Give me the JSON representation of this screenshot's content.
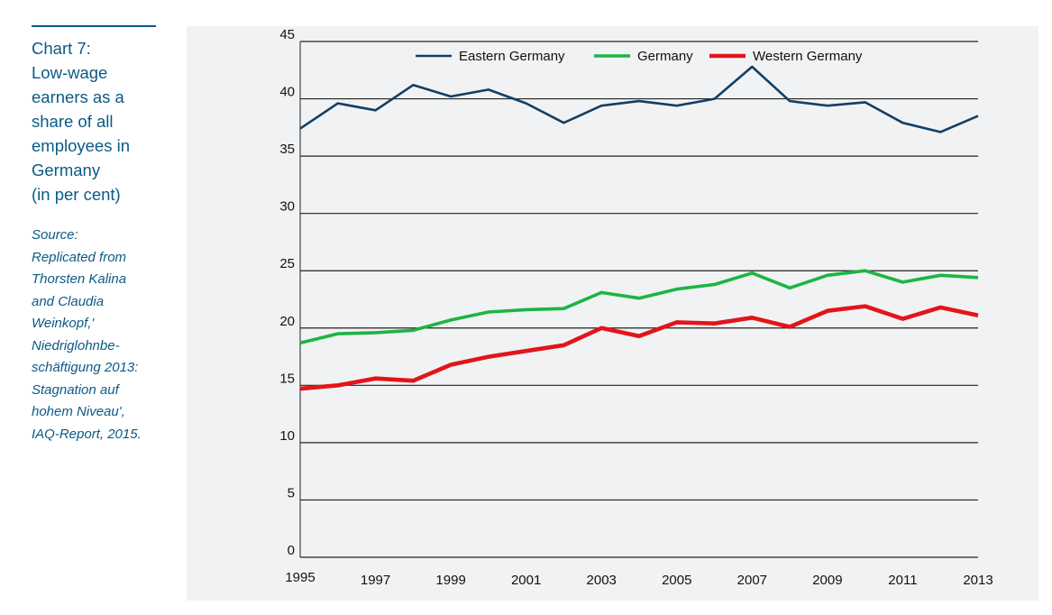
{
  "sidebar": {
    "title": "Chart 7:\nLow-wage\nearners as a\nshare of all\nemployees in\nGermany\n(in per cent)",
    "source": "Source:\nReplicated from\nThorsten Kalina\nand Claudia\nWeinkopf,'\nNiedriglohnbe-\nschäftigung 2013:\nStagnation auf\nhohem Niveau',\nIAQ-Report, 2015."
  },
  "chart_data": {
    "type": "line",
    "title": "Low-wage earners as a share of all employees in Germany (in per cent)",
    "xlabel": "",
    "ylabel": "",
    "x": [
      1995,
      1996,
      1997,
      1998,
      1999,
      2000,
      2001,
      2002,
      2003,
      2004,
      2005,
      2006,
      2007,
      2008,
      2009,
      2010,
      2011,
      2012,
      2013
    ],
    "x_tick_labels": [
      "1995",
      "1997",
      "1999",
      "2001",
      "2003",
      "2005",
      "2007",
      "2009",
      "2011",
      "2013"
    ],
    "y_tick_labels": [
      "0",
      "5",
      "10",
      "15",
      "20",
      "25",
      "30",
      "35",
      "40",
      "45"
    ],
    "ylim": [
      0,
      45
    ],
    "grid": true,
    "legend_position": "top",
    "series": [
      {
        "name": "Eastern Germany",
        "color": "#123f66",
        "values": [
          37.4,
          39.6,
          39.0,
          41.2,
          40.2,
          40.8,
          39.6,
          37.9,
          39.4,
          39.8,
          39.4,
          40.0,
          42.8,
          39.8,
          39.4,
          39.7,
          37.9,
          37.1,
          38.5
        ]
      },
      {
        "name": "Germany",
        "color": "#1db445",
        "values": [
          18.7,
          19.5,
          19.6,
          19.8,
          20.7,
          21.4,
          21.6,
          21.7,
          23.1,
          22.6,
          23.4,
          23.8,
          24.8,
          23.5,
          24.6,
          25.0,
          24.0,
          24.6,
          24.4
        ]
      },
      {
        "name": "Western Germany",
        "color": "#e3141b",
        "values": [
          14.7,
          15.0,
          15.6,
          15.4,
          16.8,
          17.5,
          18.0,
          18.5,
          20.0,
          19.3,
          20.5,
          20.4,
          20.9,
          20.1,
          21.5,
          21.9,
          20.8,
          21.8,
          21.1
        ]
      }
    ]
  }
}
